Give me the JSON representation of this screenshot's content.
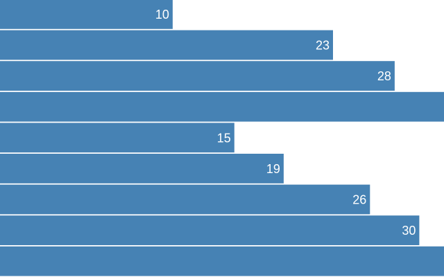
{
  "chart_data": {
    "type": "bar",
    "orientation": "horizontal",
    "values": [
      10,
      23,
      28,
      32,
      15,
      19,
      26,
      30,
      32
    ],
    "data_labels": [
      "10",
      "23",
      "28",
      "",
      "15",
      "19",
      "26",
      "30",
      ""
    ],
    "xlim": [
      -4,
      32
    ],
    "bar_color": "#4682b4",
    "label_color": "#ffffff",
    "grid": false,
    "legend": "none"
  }
}
